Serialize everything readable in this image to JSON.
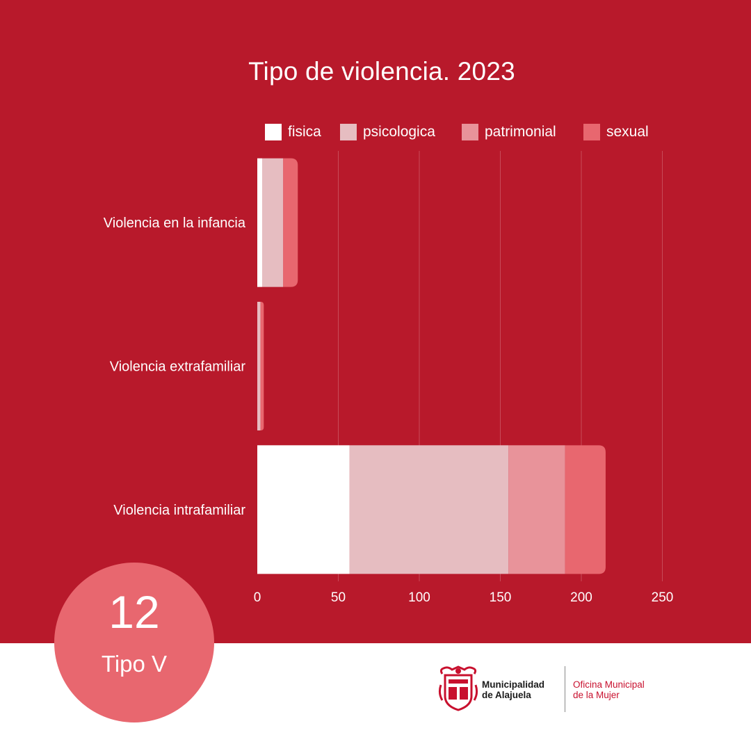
{
  "chart_data": {
    "type": "bar",
    "orientation": "horizontal",
    "stacked": true,
    "title": "Tipo de violencia. 2023",
    "categories": [
      "Violencia en la infancia",
      "Violencia extrafamiliar",
      "Violencia intrafamiliar"
    ],
    "series": [
      {
        "name": "fisica",
        "color": "#FFFFFF",
        "values": [
          3,
          0,
          57
        ]
      },
      {
        "name": "psicologica",
        "color": "#E6BDC1",
        "values": [
          13,
          2,
          98
        ]
      },
      {
        "name": "patrimonial",
        "color": "#E8939A",
        "values": [
          0,
          0,
          35
        ]
      },
      {
        "name": "sexual",
        "color": "#E8676F",
        "values": [
          9,
          2,
          25
        ]
      }
    ],
    "xlim": [
      0,
      250
    ],
    "xticks": [
      "0",
      "50",
      "100",
      "150",
      "200",
      "250"
    ],
    "grid": true,
    "legend_position": "top"
  },
  "badge": {
    "number": "12",
    "label": "Tipo V"
  },
  "footer": {
    "organization": [
      "Municipalidad",
      "de Alajuela"
    ],
    "office": [
      "Oficina Municipal",
      "de la Mujer"
    ]
  },
  "colors": {
    "background": "#B8192B",
    "accent": "#E8676F",
    "office_text": "#C8102E"
  }
}
